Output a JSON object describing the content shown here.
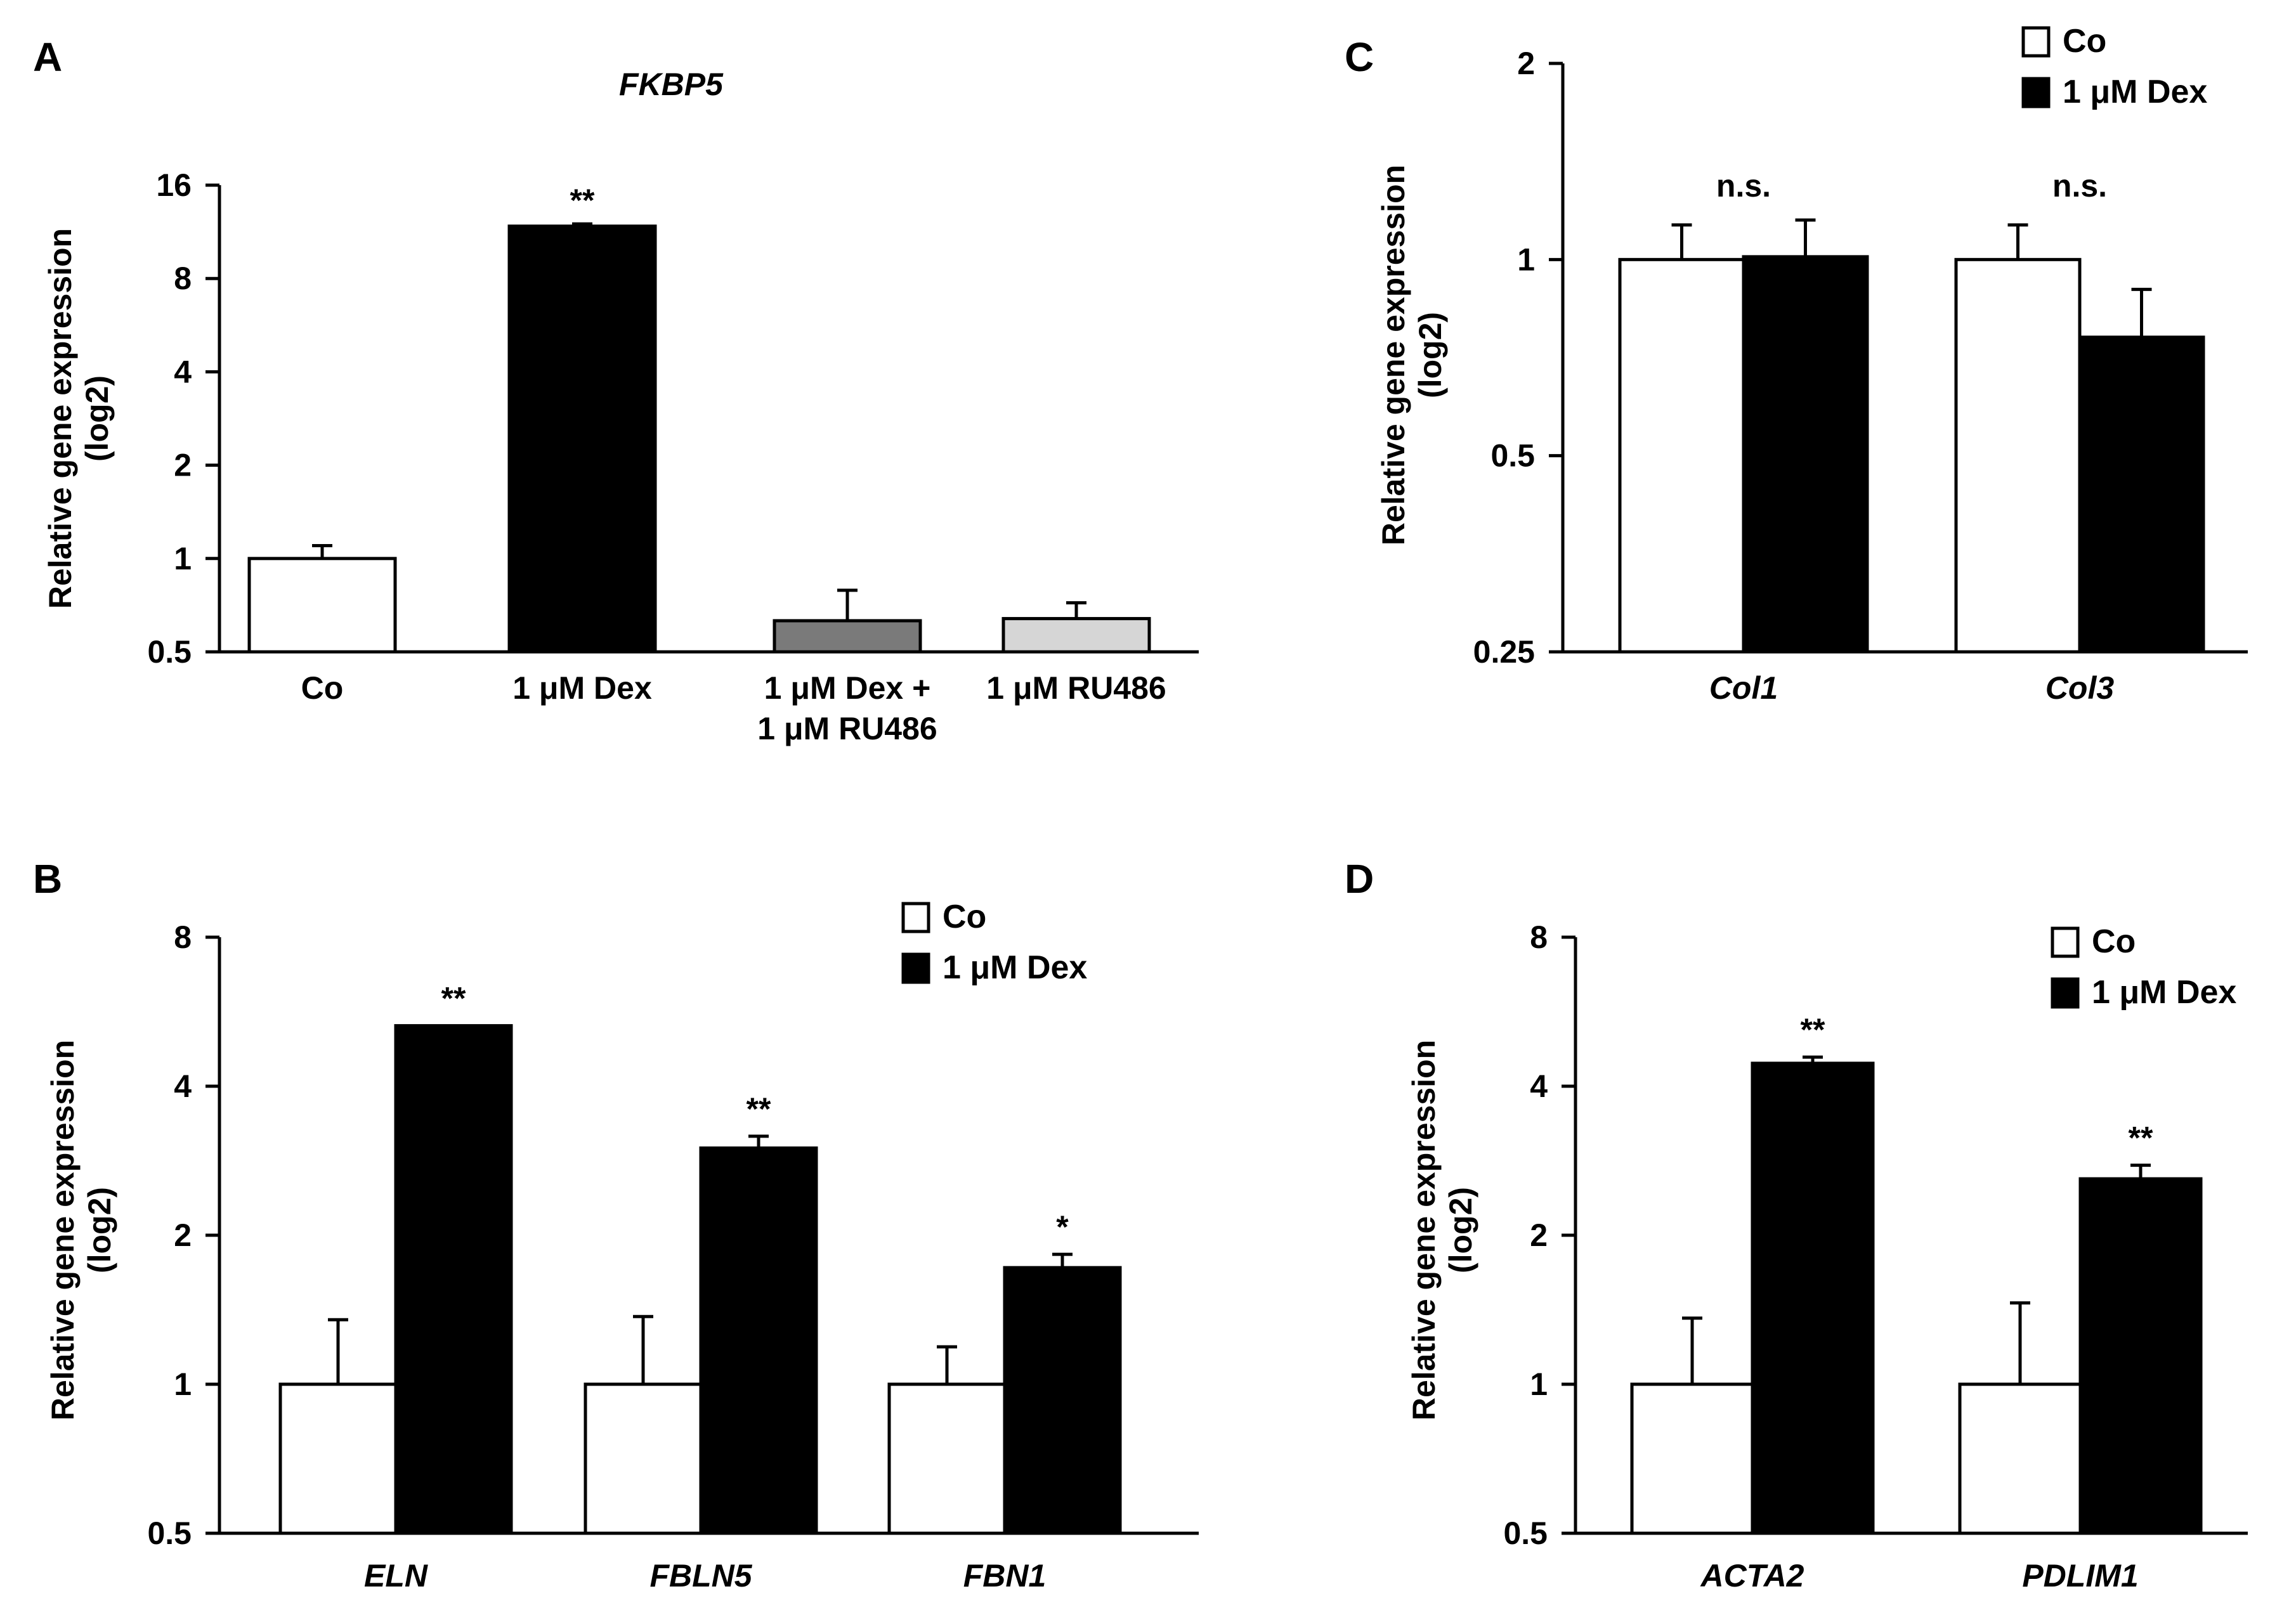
{
  "chart_data": [
    {
      "panel": "A",
      "type": "bar",
      "title": "FKBP5",
      "ylabel_lines": [
        "Relative gene expression",
        "(log2)"
      ],
      "yscale": "log2",
      "ylim": [
        0.5,
        16
      ],
      "yticks": [
        "0.5",
        "1",
        "2",
        "4",
        "8",
        "16"
      ],
      "italic_categories": false,
      "categories": [
        [
          "Co"
        ],
        [
          "1 μM Dex"
        ],
        [
          "1 μM Dex +",
          "1 μM RU486"
        ],
        [
          "1 μM RU486"
        ]
      ],
      "series": [
        {
          "name": "",
          "colors": [
            "#ffffff",
            "#000000",
            "#7a7a7a",
            "#d6d6d6"
          ],
          "values": [
            1.0,
            11.8,
            0.63,
            0.64
          ],
          "errors": [
            0.1,
            0.2,
            0.16,
            0.08
          ],
          "significance": [
            "",
            "**",
            "",
            ""
          ]
        }
      ],
      "legend": []
    },
    {
      "panel": "B",
      "type": "bar",
      "title": "",
      "ylabel_lines": [
        "Relative gene expression",
        "(log2)"
      ],
      "yscale": "log2",
      "ylim": [
        0.5,
        8
      ],
      "yticks": [
        "0.5",
        "1",
        "2",
        "4",
        "8"
      ],
      "italic_categories": true,
      "categories": [
        [
          "ELN"
        ],
        [
          "FBLN5"
        ],
        [
          "FBN1"
        ]
      ],
      "series": [
        {
          "name": "Co",
          "color": "#ffffff",
          "values": [
            1.0,
            1.0,
            1.0
          ],
          "errors": [
            0.35,
            0.37,
            0.19
          ],
          "significance": [
            "",
            "",
            ""
          ]
        },
        {
          "name": "1 μM Dex",
          "color": "#000000",
          "values": [
            5.3,
            3.0,
            1.72
          ],
          "errors": [
            0.0,
            0.17,
            0.11
          ],
          "significance": [
            "**",
            "**",
            "*"
          ]
        }
      ],
      "legend": [
        "Co",
        "1 μM Dex"
      ]
    },
    {
      "panel": "C",
      "type": "bar",
      "title": "",
      "ylabel_lines": [
        "Relative gene expression",
        "(log2)"
      ],
      "yscale": "log2",
      "ylim": [
        0.25,
        2
      ],
      "yticks": [
        "0.25",
        "0.5",
        "1",
        "2"
      ],
      "italic_categories": true,
      "categories": [
        [
          "Col1"
        ],
        [
          "Col3"
        ]
      ],
      "series": [
        {
          "name": "Co",
          "color": "#ffffff",
          "values": [
            1.0,
            1.0
          ],
          "errors": [
            0.13,
            0.13
          ],
          "significance": [
            "",
            ""
          ]
        },
        {
          "name": "1 μM Dex",
          "color": "#000000",
          "values": [
            1.01,
            0.76
          ],
          "errors": [
            0.14,
            0.14
          ],
          "significance": [
            "",
            ""
          ]
        }
      ],
      "group_significance": [
        "n.s.",
        "n.s."
      ],
      "legend": [
        "Co",
        "1 μM Dex"
      ]
    },
    {
      "panel": "D",
      "type": "bar",
      "title": "",
      "ylabel_lines": [
        "Relative gene expression",
        "(log2)"
      ],
      "yscale": "log2",
      "ylim": [
        0.5,
        8
      ],
      "yticks": [
        "0.5",
        "1",
        "2",
        "4",
        "8"
      ],
      "italic_categories": true,
      "categories": [
        [
          "ACTA2"
        ],
        [
          "PDLIM1"
        ]
      ],
      "series": [
        {
          "name": "Co",
          "color": "#ffffff",
          "values": [
            1.0,
            1.0
          ],
          "errors": [
            0.36,
            0.46
          ],
          "significance": [
            "",
            ""
          ]
        },
        {
          "name": "1 μM Dex",
          "color": "#000000",
          "values": [
            4.45,
            2.6
          ],
          "errors": [
            0.13,
            0.17
          ],
          "significance": [
            "**",
            "**"
          ]
        }
      ],
      "legend": [
        "Co",
        "1 μM Dex"
      ]
    }
  ]
}
